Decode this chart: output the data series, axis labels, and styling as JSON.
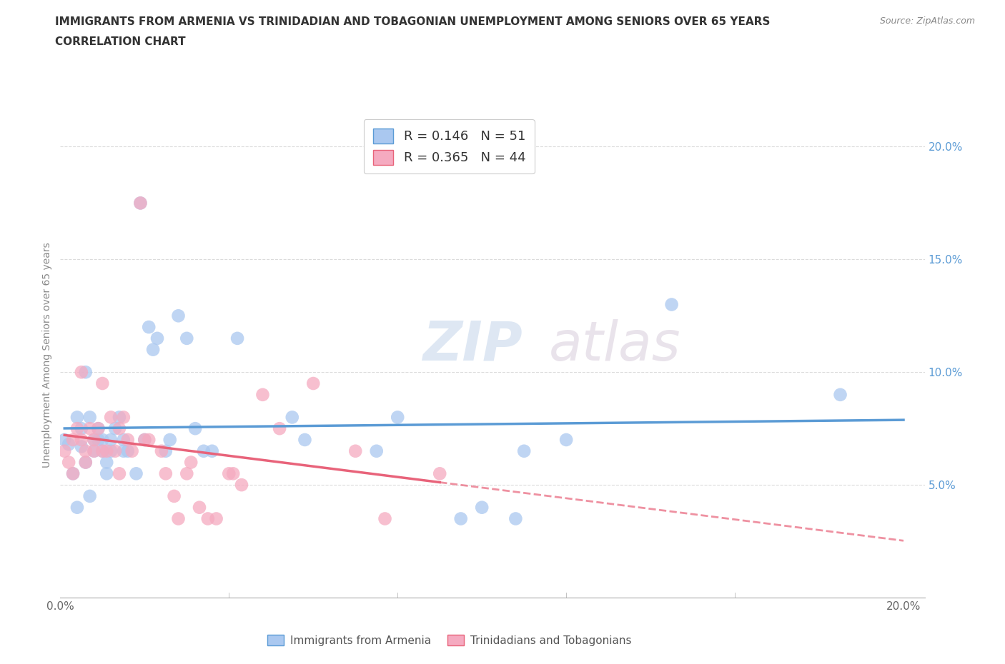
{
  "title_line1": "IMMIGRANTS FROM ARMENIA VS TRINIDADIAN AND TOBAGONIAN UNEMPLOYMENT AMONG SENIORS OVER 65 YEARS",
  "title_line2": "CORRELATION CHART",
  "source_text": "Source: ZipAtlas.com",
  "ylabel": "Unemployment Among Seniors over 65 years",
  "xlim": [
    0.0,
    0.205
  ],
  "ylim": [
    0.0,
    0.215
  ],
  "yticks": [
    0.05,
    0.1,
    0.15,
    0.2
  ],
  "ytick_labels": [
    "5.0%",
    "10.0%",
    "15.0%",
    "20.0%"
  ],
  "xtick_positions": [
    0.0,
    0.04,
    0.08,
    0.12,
    0.16,
    0.2
  ],
  "xtick_labels": [
    "0.0%",
    "",
    "",
    "",
    "",
    "20.0%"
  ],
  "legend_r1": "0.146",
  "legend_n1": "51",
  "legend_r2": "0.365",
  "legend_n2": "44",
  "color_armenia_face": "#aac8f0",
  "color_armenia_edge": "#5b9bd5",
  "color_tt_face": "#f5aac0",
  "color_tt_edge": "#e8637a",
  "watermark_top": "ZIP",
  "watermark_bot": "atlas",
  "scatter_armenia": [
    [
      0.001,
      0.07
    ],
    [
      0.002,
      0.068
    ],
    [
      0.003,
      0.055
    ],
    [
      0.004,
      0.04
    ],
    [
      0.004,
      0.08
    ],
    [
      0.005,
      0.067
    ],
    [
      0.005,
      0.075
    ],
    [
      0.006,
      0.06
    ],
    [
      0.006,
      0.1
    ],
    [
      0.007,
      0.08
    ],
    [
      0.007,
      0.045
    ],
    [
      0.008,
      0.07
    ],
    [
      0.008,
      0.065
    ],
    [
      0.009,
      0.07
    ],
    [
      0.009,
      0.075
    ],
    [
      0.01,
      0.065
    ],
    [
      0.01,
      0.07
    ],
    [
      0.011,
      0.06
    ],
    [
      0.011,
      0.055
    ],
    [
      0.012,
      0.065
    ],
    [
      0.012,
      0.07
    ],
    [
      0.013,
      0.075
    ],
    [
      0.014,
      0.08
    ],
    [
      0.015,
      0.07
    ],
    [
      0.015,
      0.065
    ],
    [
      0.016,
      0.065
    ],
    [
      0.018,
      0.055
    ],
    [
      0.019,
      0.175
    ],
    [
      0.02,
      0.07
    ],
    [
      0.021,
      0.12
    ],
    [
      0.022,
      0.11
    ],
    [
      0.023,
      0.115
    ],
    [
      0.025,
      0.065
    ],
    [
      0.026,
      0.07
    ],
    [
      0.028,
      0.125
    ],
    [
      0.03,
      0.115
    ],
    [
      0.032,
      0.075
    ],
    [
      0.034,
      0.065
    ],
    [
      0.036,
      0.065
    ],
    [
      0.042,
      0.115
    ],
    [
      0.055,
      0.08
    ],
    [
      0.058,
      0.07
    ],
    [
      0.075,
      0.065
    ],
    [
      0.08,
      0.08
    ],
    [
      0.095,
      0.035
    ],
    [
      0.1,
      0.04
    ],
    [
      0.108,
      0.035
    ],
    [
      0.11,
      0.065
    ],
    [
      0.12,
      0.07
    ],
    [
      0.145,
      0.13
    ],
    [
      0.185,
      0.09
    ]
  ],
  "scatter_tt": [
    [
      0.001,
      0.065
    ],
    [
      0.002,
      0.06
    ],
    [
      0.003,
      0.055
    ],
    [
      0.003,
      0.07
    ],
    [
      0.004,
      0.075
    ],
    [
      0.005,
      0.1
    ],
    [
      0.005,
      0.07
    ],
    [
      0.006,
      0.065
    ],
    [
      0.006,
      0.06
    ],
    [
      0.007,
      0.075
    ],
    [
      0.008,
      0.07
    ],
    [
      0.008,
      0.065
    ],
    [
      0.009,
      0.075
    ],
    [
      0.01,
      0.065
    ],
    [
      0.01,
      0.095
    ],
    [
      0.011,
      0.065
    ],
    [
      0.012,
      0.08
    ],
    [
      0.013,
      0.065
    ],
    [
      0.014,
      0.055
    ],
    [
      0.014,
      0.075
    ],
    [
      0.015,
      0.08
    ],
    [
      0.016,
      0.07
    ],
    [
      0.017,
      0.065
    ],
    [
      0.019,
      0.175
    ],
    [
      0.02,
      0.07
    ],
    [
      0.021,
      0.07
    ],
    [
      0.024,
      0.065
    ],
    [
      0.025,
      0.055
    ],
    [
      0.027,
      0.045
    ],
    [
      0.028,
      0.035
    ],
    [
      0.03,
      0.055
    ],
    [
      0.031,
      0.06
    ],
    [
      0.033,
      0.04
    ],
    [
      0.035,
      0.035
    ],
    [
      0.037,
      0.035
    ],
    [
      0.04,
      0.055
    ],
    [
      0.041,
      0.055
    ],
    [
      0.043,
      0.05
    ],
    [
      0.048,
      0.09
    ],
    [
      0.052,
      0.075
    ],
    [
      0.06,
      0.095
    ],
    [
      0.07,
      0.065
    ],
    [
      0.077,
      0.035
    ],
    [
      0.09,
      0.055
    ]
  ]
}
